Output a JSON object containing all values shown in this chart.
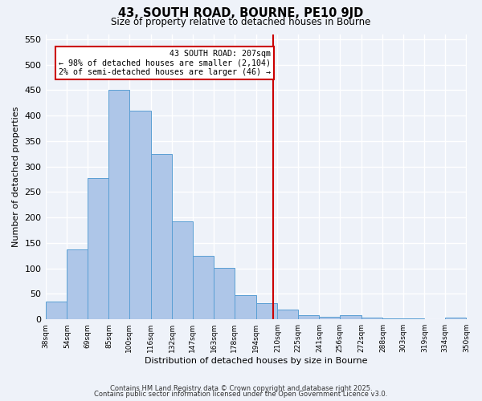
{
  "title": "43, SOUTH ROAD, BOURNE, PE10 9JD",
  "subtitle": "Size of property relative to detached houses in Bourne",
  "xlabel": "Distribution of detached houses by size in Bourne",
  "ylabel": "Number of detached properties",
  "bar_edges": [
    38,
    54,
    69,
    85,
    100,
    116,
    132,
    147,
    163,
    178,
    194,
    210,
    225,
    241,
    256,
    272,
    288,
    303,
    319,
    334,
    350
  ],
  "bar_heights": [
    35,
    137,
    278,
    450,
    410,
    325,
    192,
    125,
    101,
    47,
    32,
    20,
    8,
    5,
    8,
    3,
    2,
    2,
    1,
    3
  ],
  "bar_facecolor": "#aec6e8",
  "bar_edgecolor": "#5a9fd4",
  "vline_x": 207,
  "vline_color": "#cc0000",
  "annotation_title": "43 SOUTH ROAD: 207sqm",
  "annotation_line1": "← 98% of detached houses are smaller (2,104)",
  "annotation_line2": "2% of semi-detached houses are larger (46) →",
  "annotation_box_edgecolor": "#cc0000",
  "ylim": [
    0,
    560
  ],
  "yticks": [
    0,
    50,
    100,
    150,
    200,
    250,
    300,
    350,
    400,
    450,
    500,
    550
  ],
  "footnote1": "Contains HM Land Registry data © Crown copyright and database right 2025.",
  "footnote2": "Contains public sector information licensed under the Open Government Licence v3.0.",
  "bg_color": "#eef2f9",
  "grid_color": "#ffffff",
  "tick_labels": [
    "38sqm",
    "54sqm",
    "69sqm",
    "85sqm",
    "100sqm",
    "116sqm",
    "132sqm",
    "147sqm",
    "163sqm",
    "178sqm",
    "194sqm",
    "210sqm",
    "225sqm",
    "241sqm",
    "256sqm",
    "272sqm",
    "288sqm",
    "303sqm",
    "319sqm",
    "334sqm",
    "350sqm"
  ]
}
